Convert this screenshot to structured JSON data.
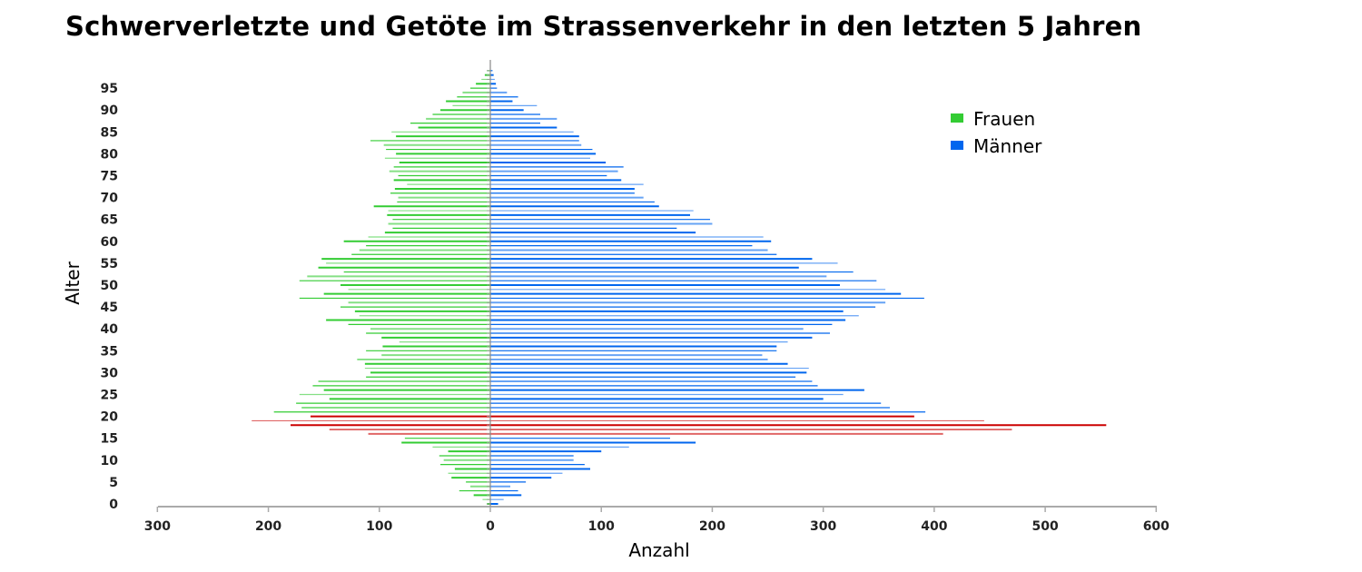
{
  "chart_data": {
    "type": "bar",
    "orientation": "horizontal-population-pyramid",
    "title": "Schwerverletzte und Getöte im Strassenverkehr in den letzten 5 Jahren",
    "xlabel": "Anzahl",
    "ylabel": "Alter",
    "xlim": [
      -300,
      600
    ],
    "ylim": [
      0,
      99
    ],
    "x_ticks": [
      {
        "value": -300,
        "label": "300"
      },
      {
        "value": -200,
        "label": "200"
      },
      {
        "value": -100,
        "label": "100"
      },
      {
        "value": 0,
        "label": "0"
      },
      {
        "value": 100,
        "label": "100"
      },
      {
        "value": 200,
        "label": "200"
      },
      {
        "value": 300,
        "label": "300"
      },
      {
        "value": 400,
        "label": "400"
      },
      {
        "value": 500,
        "label": "500"
      },
      {
        "value": 600,
        "label": "600"
      }
    ],
    "y_ticks": [
      0,
      5,
      10,
      15,
      20,
      25,
      30,
      35,
      40,
      45,
      50,
      55,
      60,
      65,
      70,
      75,
      80,
      85,
      90,
      95
    ],
    "legend": {
      "position": "top-right",
      "entries": [
        {
          "name": "Frauen",
          "color": "#33cc33"
        },
        {
          "name": "Männer",
          "color": "#0066ee"
        }
      ]
    },
    "highlight_color": "#cc0000",
    "highlight_ages": [
      16,
      17,
      18,
      19,
      20
    ],
    "ages": [
      0,
      1,
      2,
      3,
      4,
      5,
      6,
      7,
      8,
      9,
      10,
      11,
      12,
      13,
      14,
      15,
      16,
      17,
      18,
      19,
      20,
      21,
      22,
      23,
      24,
      25,
      26,
      27,
      28,
      29,
      30,
      31,
      32,
      33,
      34,
      35,
      36,
      37,
      38,
      39,
      40,
      41,
      42,
      43,
      44,
      45,
      46,
      47,
      48,
      49,
      50,
      51,
      52,
      53,
      54,
      55,
      56,
      57,
      58,
      59,
      60,
      61,
      62,
      63,
      64,
      65,
      66,
      67,
      68,
      69,
      70,
      71,
      72,
      73,
      74,
      75,
      76,
      77,
      78,
      79,
      80,
      81,
      82,
      83,
      84,
      85,
      86,
      87,
      88,
      89,
      90,
      91,
      92,
      93,
      94,
      95,
      96,
      97,
      98,
      99
    ],
    "series": [
      {
        "name": "Frauen",
        "values": [
          3,
          7,
          15,
          28,
          18,
          22,
          35,
          38,
          32,
          45,
          42,
          46,
          38,
          52,
          80,
          77,
          110,
          145,
          180,
          215,
          162,
          195,
          170,
          175,
          145,
          172,
          150,
          160,
          155,
          112,
          108,
          113,
          113,
          120,
          98,
          112,
          97,
          82,
          98,
          112,
          108,
          128,
          148,
          118,
          122,
          135,
          128,
          172,
          150,
          128,
          135,
          172,
          165,
          132,
          155,
          148,
          152,
          125,
          118,
          112,
          132,
          110,
          95,
          88,
          92,
          88,
          93,
          92,
          105,
          84,
          83,
          90,
          86,
          75,
          87,
          83,
          91,
          87,
          82,
          95,
          85,
          94,
          96,
          108,
          85,
          89,
          65,
          72,
          58,
          52,
          45,
          34,
          40,
          30,
          25,
          18,
          13,
          8,
          5,
          3
        ]
      },
      {
        "name": "Männer",
        "values": [
          7,
          12,
          28,
          25,
          18,
          32,
          55,
          65,
          90,
          85,
          75,
          75,
          100,
          125,
          185,
          162,
          408,
          470,
          555,
          445,
          382,
          392,
          360,
          352,
          300,
          318,
          337,
          295,
          290,
          275,
          285,
          287,
          268,
          250,
          245,
          258,
          258,
          268,
          290,
          306,
          282,
          308,
          320,
          332,
          318,
          347,
          356,
          391,
          370,
          356,
          315,
          348,
          303,
          327,
          278,
          313,
          290,
          258,
          250,
          236,
          253,
          246,
          185,
          168,
          200,
          198,
          180,
          183,
          152,
          148,
          138,
          130,
          130,
          138,
          118,
          105,
          115,
          120,
          104,
          90,
          95,
          92,
          82,
          80,
          80,
          75,
          60,
          45,
          60,
          45,
          30,
          42,
          20,
          25,
          15,
          6,
          5,
          4,
          3,
          2
        ]
      }
    ]
  }
}
